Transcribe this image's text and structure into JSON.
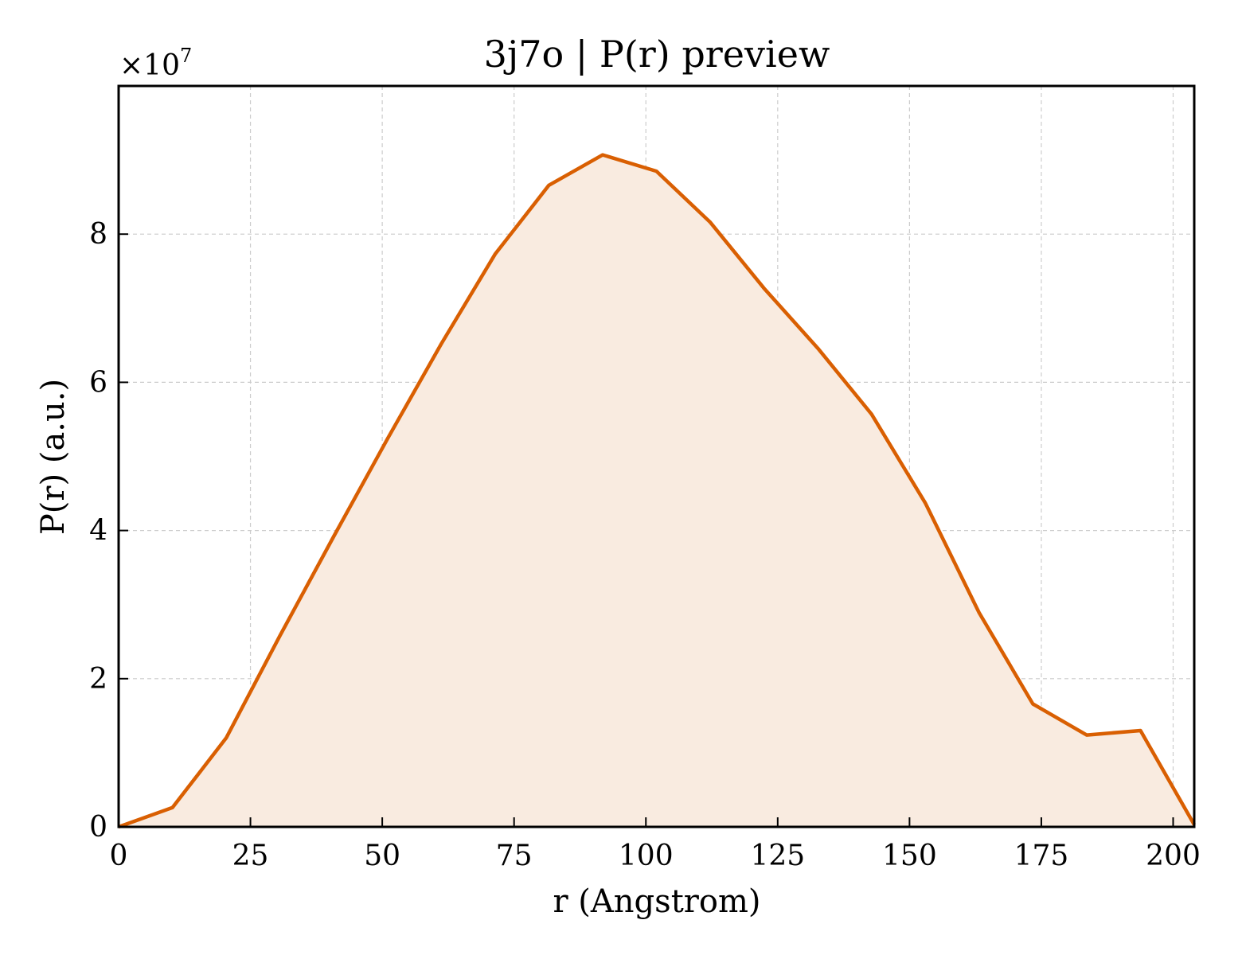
{
  "chart_data": {
    "type": "area",
    "title": "3j7o | P(r) preview",
    "xlabel": "r (Angstrom)",
    "ylabel": "P(r) (a.u.)",
    "y_multiplier": "×10",
    "y_multiplier_exp": "7",
    "xlim": [
      0,
      204
    ],
    "ylim": [
      0,
      10
    ],
    "x_ticks": [
      0,
      25,
      50,
      75,
      100,
      125,
      150,
      175,
      200
    ],
    "y_ticks": [
      0,
      2,
      4,
      6,
      8
    ],
    "grid": true,
    "line_color": "#d95f02",
    "fill_color": "#f9ebe0",
    "series": [
      {
        "x": [
          0,
          10.2,
          20.4,
          30.6,
          40.8,
          51.0,
          61.2,
          71.4,
          81.6,
          91.8,
          102.0,
          112.2,
          122.4,
          132.6,
          142.8,
          153.0,
          163.2,
          173.4,
          183.6,
          193.8,
          204
        ],
        "values": [
          0,
          0.26,
          1.2,
          2.58,
          3.92,
          5.24,
          6.52,
          7.73,
          8.66,
          9.07,
          8.85,
          8.16,
          7.27,
          6.46,
          5.57,
          4.37,
          2.89,
          1.66,
          1.24,
          1.3,
          0.03
        ]
      }
    ]
  }
}
